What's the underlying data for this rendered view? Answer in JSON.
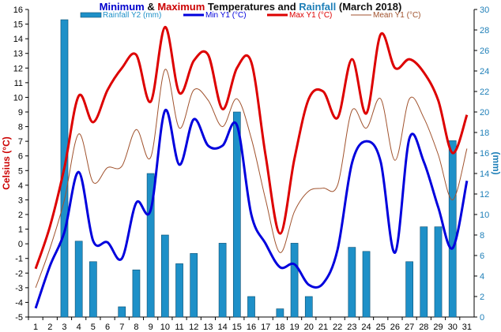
{
  "chart_data": {
    "type": "bar+line",
    "title_parts": [
      {
        "text": "Minimum",
        "color": "#0000cc"
      },
      {
        "text": " & ",
        "color": "#111111"
      },
      {
        "text": "Maximum",
        "color": "#cc0000"
      },
      {
        "text": " Temperatures and ",
        "color": "#111111"
      },
      {
        "text": "Rainfall",
        "color": "#1e7fb8"
      },
      {
        "text": " (March 2018)",
        "color": "#111111"
      }
    ],
    "ylabel_left": "Celsius (°C)",
    "ylabel_right": "(mm)",
    "x": [
      1,
      2,
      3,
      4,
      5,
      6,
      7,
      8,
      9,
      10,
      11,
      12,
      13,
      14,
      15,
      16,
      17,
      18,
      19,
      20,
      21,
      22,
      23,
      24,
      25,
      26,
      27,
      28,
      29,
      30,
      31
    ],
    "x_ticks": [
      "1",
      "2",
      "3",
      "4",
      "5",
      "6",
      "7",
      "8",
      "9",
      "10",
      "11",
      "12",
      "13",
      "14",
      "15",
      "16",
      "17",
      "18",
      "19",
      "20",
      "21",
      "22",
      "23",
      "24",
      "25",
      "26",
      "27",
      "28",
      "29",
      "30",
      "31"
    ],
    "ylim_left": [
      -5,
      16
    ],
    "y_ticks_left": [
      "-5",
      "-4",
      "-3",
      "-2",
      "-1",
      "0",
      "1",
      "2",
      "3",
      "4",
      "5",
      "6",
      "7",
      "8",
      "9",
      "10",
      "11",
      "12",
      "13",
      "14",
      "15",
      "16"
    ],
    "ylim_right": [
      0,
      30
    ],
    "y_ticks_right": [
      "0",
      "2",
      "4",
      "6",
      "8",
      "10",
      "12",
      "14",
      "16",
      "18",
      "20",
      "22",
      "24",
      "26",
      "28",
      "30"
    ],
    "grid": false,
    "legend_position": "top",
    "series": [
      {
        "name": "Rainfall Y2 (mm)",
        "type": "bar",
        "axis": "right",
        "color": "#1e90c8",
        "values": [
          0,
          0,
          29,
          7.4,
          5.4,
          0,
          1,
          4.6,
          14,
          8,
          5.2,
          6.2,
          0,
          7.2,
          20,
          2,
          0,
          0.8,
          7.2,
          2,
          0,
          0,
          6.8,
          6.4,
          0,
          0,
          5.4,
          8.8,
          8.8,
          17.2,
          0
        ]
      },
      {
        "name": "Min Y1 (°C)",
        "type": "line",
        "axis": "left",
        "color": "#0000dd",
        "values": [
          -4.4,
          -1.5,
          0.8,
          4.9,
          0.2,
          0.1,
          -1,
          2.8,
          2.3,
          9.1,
          5.4,
          8.5,
          6.7,
          6.7,
          8.1,
          2,
          0,
          -1.6,
          -1.4,
          -2.8,
          -2.7,
          -0.4,
          5.5,
          7,
          5.6,
          -0.6,
          7.2,
          5.6,
          2.5,
          -0.3,
          4.3
        ]
      },
      {
        "name": "Max Y1 (°C)",
        "type": "line",
        "axis": "left",
        "color": "#dd0000",
        "values": [
          -1.7,
          1.2,
          5.2,
          10.1,
          8.3,
          10.5,
          12,
          12.9,
          9.7,
          14.8,
          10.3,
          12.5,
          12.9,
          9.2,
          12,
          12.4,
          6,
          0.7,
          5.8,
          9.9,
          10.4,
          8.6,
          12.6,
          8.9,
          14.3,
          12,
          12.6,
          11.7,
          9.8,
          6.2,
          8.8
        ]
      },
      {
        "name": "Mean Y1 (°C)",
        "type": "line",
        "axis": "left",
        "color": "#a0522d",
        "values": [
          -3,
          -0.3,
          3,
          7.5,
          4.2,
          5.2,
          5.3,
          7.8,
          5.9,
          11.9,
          7.9,
          10.5,
          9.8,
          8,
          9.9,
          7.2,
          3,
          -0.6,
          2.2,
          3.6,
          3.8,
          4,
          9.1,
          7.9,
          9.9,
          5.7,
          9.9,
          8.6,
          6.1,
          3,
          6.5
        ]
      }
    ]
  }
}
